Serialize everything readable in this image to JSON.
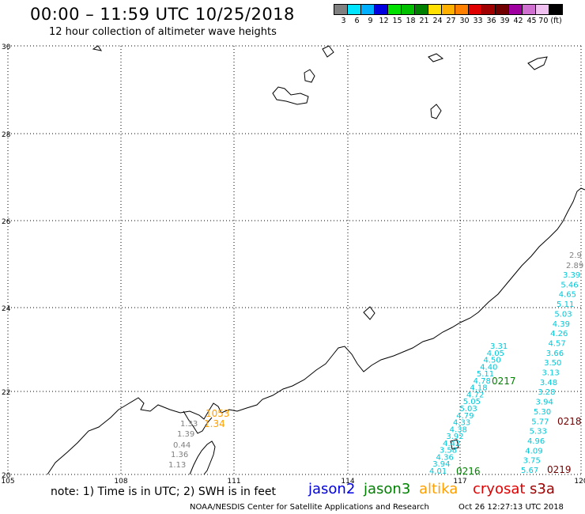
{
  "header": {
    "title": "00:00 – 11:59 UTC 10/25/2018",
    "subtitle": "12 hour collection of altimeter wave heights"
  },
  "colorbar": {
    "colors": [
      "#808080",
      "#00e5ff",
      "#00b0ff",
      "#0000e0",
      "#00e000",
      "#00c000",
      "#008000",
      "#ffe000",
      "#ffb000",
      "#ff7f00",
      "#e00000",
      "#a00000",
      "#700000",
      "#a000a0",
      "#d070d0",
      "#f0c0f0",
      "#000000"
    ],
    "labels": [
      "3",
      "6",
      "9",
      "12",
      "15",
      "18",
      "21",
      "24",
      "27",
      "30",
      "33",
      "36",
      "39",
      "42",
      "45",
      "70 (ft)"
    ]
  },
  "map": {
    "lat_labels": [
      "30",
      "28",
      "26",
      "24",
      "22",
      "20"
    ],
    "lon_labels": [
      "105",
      "108",
      "111",
      "114",
      "117",
      "120"
    ]
  },
  "tracks": {
    "altika_labels": [
      "1053",
      "1.34"
    ],
    "gray_values": [
      "1.33",
      "1.39",
      "0.44",
      "1.36",
      "1.13"
    ],
    "cyan_track_a": [
      "3.31",
      "4.05",
      "4.50",
      "4.40",
      "5.11",
      "4.78",
      "4.18",
      "4.72",
      "5.05",
      "5.03",
      "4.79",
      "4.33",
      "4.38",
      "3.92",
      "4.42",
      "3.58",
      "4.36",
      "3.94",
      "4.01"
    ],
    "cyan_track_b": [
      "3.39",
      "5.46",
      "4.65",
      "5.11",
      "5.03",
      "4.39",
      "4.26",
      "4.57",
      "3.66",
      "3.50",
      "3.13",
      "3.48",
      "3.28",
      "3.94",
      "5.30",
      "5.77",
      "5.33",
      "4.96",
      "4.09",
      "3.75",
      "5.67"
    ],
    "edge_values": [
      "2.9",
      "2.89"
    ],
    "time_labels": [
      {
        "text": "0217",
        "color": "#008000"
      },
      {
        "text": "0216",
        "color": "#008000"
      },
      {
        "text": "0218",
        "color": "#700000"
      },
      {
        "text": "0219",
        "color": "#700000"
      }
    ]
  },
  "footer": {
    "note": "note: 1) Time is in UTC; 2) SWH is in feet",
    "legend": [
      {
        "label": "jason2",
        "color": "#0000e0"
      },
      {
        "label": "jason3",
        "color": "#008000"
      },
      {
        "label": "altika",
        "color": "#ff9f00"
      },
      {
        "label": "cryosat",
        "color": "#e00000"
      },
      {
        "label": "s3a",
        "color": "#a00000"
      }
    ],
    "credit": "NOAA/NESDIS Center for Satellite Applications and Research",
    "timestamp": "Oct 26 12:27:13 UTC 2018"
  }
}
